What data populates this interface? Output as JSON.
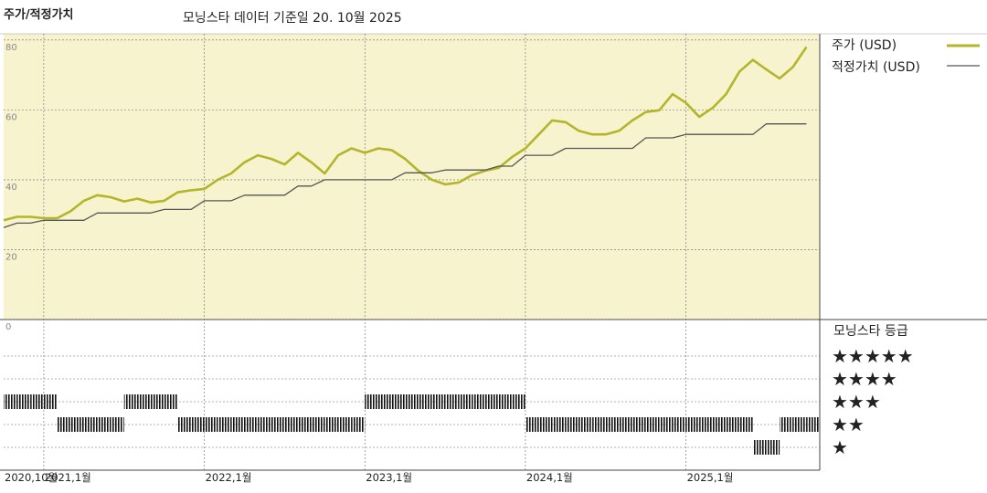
{
  "chart_data": {
    "type": "line",
    "title": "주가/적정가치",
    "subtitle": "모닝스타 데이터 기준일 20. 10월 2025",
    "x": [
      "2020-10",
      "2020-11",
      "2020-12",
      "2021-01",
      "2021-02",
      "2021-03",
      "2021-04",
      "2021-05",
      "2021-06",
      "2021-07",
      "2021-08",
      "2021-09",
      "2021-10",
      "2021-11",
      "2021-12",
      "2022-01",
      "2022-02",
      "2022-03",
      "2022-04",
      "2022-05",
      "2022-06",
      "2022-07",
      "2022-08",
      "2022-09",
      "2022-10",
      "2022-11",
      "2022-12",
      "2023-01",
      "2023-02",
      "2023-03",
      "2023-04",
      "2023-05",
      "2023-06",
      "2023-07",
      "2023-08",
      "2023-09",
      "2023-10",
      "2023-11",
      "2023-12",
      "2024-01",
      "2024-02",
      "2024-03",
      "2024-04",
      "2024-05",
      "2024-06",
      "2024-07",
      "2024-08",
      "2024-09",
      "2024-10",
      "2024-11",
      "2024-12",
      "2025-01",
      "2025-02",
      "2025-03",
      "2025-04",
      "2025-05",
      "2025-06",
      "2025-07",
      "2025-08",
      "2025-09",
      "2025-10"
    ],
    "series": [
      {
        "name": "주가 (USD)",
        "color": "#b3b52a",
        "values": [
          28.4,
          29.4,
          29.4,
          29,
          29,
          31,
          34,
          35.6,
          35,
          33.8,
          34.6,
          33.5,
          34,
          36.4,
          37,
          37.4,
          40,
          41.8,
          45,
          47,
          46,
          44.4,
          47.7,
          45,
          41.8,
          47,
          49,
          47.7,
          49,
          48.5,
          46,
          42.6,
          40,
          38.7,
          39.2,
          41.3,
          42.6,
          43.4,
          46.5,
          49,
          53,
          57,
          56.5,
          54,
          53,
          53,
          54,
          57,
          59.4,
          59.9,
          64.5,
          62,
          58,
          60.6,
          64.5,
          71,
          74.3,
          71.6,
          69,
          72.3,
          78
        ]
      },
      {
        "name": "적정가치 (USD)",
        "color": "#555555",
        "values": [
          26.3,
          27.6,
          27.6,
          28.4,
          28.4,
          28.4,
          28.4,
          30.5,
          30.5,
          30.5,
          30.5,
          30.5,
          31.5,
          31.5,
          31.5,
          34,
          34,
          34,
          35.6,
          35.6,
          35.6,
          35.6,
          38.2,
          38.2,
          40,
          40,
          40,
          40,
          40,
          40,
          42,
          42,
          42,
          42.8,
          42.8,
          42.8,
          42.8,
          43.9,
          43.9,
          47,
          47,
          47,
          49,
          49,
          49,
          49,
          49,
          49,
          52,
          52,
          52,
          53,
          53,
          53,
          53,
          53,
          53,
          56,
          56,
          56,
          56
        ]
      }
    ],
    "xlim": [
      "2020-10",
      "2025-11"
    ],
    "xticks": [
      {
        "value": "2020-10",
        "label": "2020,10월"
      },
      {
        "value": "2021-01",
        "label": "2021,1월"
      },
      {
        "value": "2022-01",
        "label": "2022,1월"
      },
      {
        "value": "2023-01",
        "label": "2023,1월"
      },
      {
        "value": "2024-01",
        "label": "2024,1월"
      },
      {
        "value": "2025-01",
        "label": "2025,1월"
      }
    ],
    "ylim": [
      0,
      81
    ],
    "yticks": [
      0,
      20,
      40,
      60,
      80
    ],
    "grid": true,
    "rating": {
      "title": "모닝스타 등급",
      "color": "#000000",
      "levels": [
        {
          "value": 5,
          "label": "★★★★★"
        },
        {
          "value": 4,
          "label": "★★★★"
        },
        {
          "value": 3,
          "label": "★★★"
        },
        {
          "value": 2,
          "label": "★★"
        },
        {
          "value": 1,
          "label": "★"
        }
      ],
      "values": [
        3,
        3,
        3,
        3,
        2,
        2,
        2,
        2,
        2,
        3,
        3,
        3,
        3,
        2,
        2,
        2,
        2,
        2,
        2,
        2,
        2,
        2,
        2,
        2,
        2,
        2,
        2,
        3,
        3,
        3,
        3,
        3,
        3,
        3,
        3,
        3,
        3,
        3,
        3,
        2,
        2,
        2,
        2,
        2,
        2,
        2,
        2,
        2,
        2,
        2,
        2,
        2,
        2,
        2,
        2,
        2,
        1,
        1,
        2,
        2,
        2
      ]
    }
  }
}
